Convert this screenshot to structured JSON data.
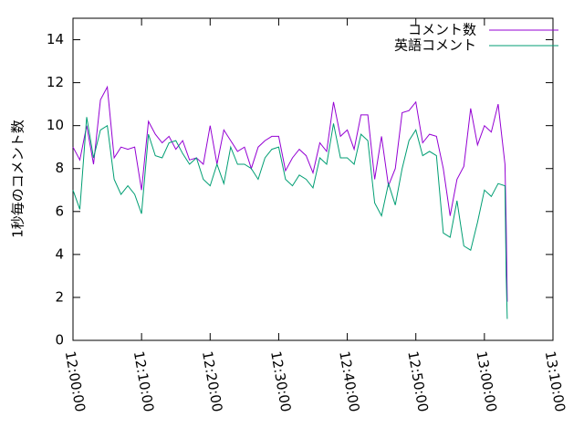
{
  "chart_data": {
    "type": "line",
    "y_label": "1秒毎のコメント数",
    "x": [
      "12:00:00",
      "12:01:00",
      "12:02:00",
      "12:03:00",
      "12:04:00",
      "12:05:00",
      "12:06:00",
      "12:07:00",
      "12:08:00",
      "12:09:00",
      "12:10:00",
      "12:11:00",
      "12:12:00",
      "12:13:00",
      "12:14:00",
      "12:15:00",
      "12:16:00",
      "12:17:00",
      "12:18:00",
      "12:19:00",
      "12:20:00",
      "12:21:00",
      "12:22:00",
      "12:23:00",
      "12:24:00",
      "12:25:00",
      "12:26:00",
      "12:27:00",
      "12:28:00",
      "12:29:00",
      "12:30:00",
      "12:31:00",
      "12:32:00",
      "12:33:00",
      "12:34:00",
      "12:35:00",
      "12:36:00",
      "12:37:00",
      "12:38:00",
      "12:39:00",
      "12:40:00",
      "12:41:00",
      "12:42:00",
      "12:43:00",
      "12:44:00",
      "12:45:00",
      "12:46:00",
      "12:47:00",
      "12:48:00",
      "12:49:00",
      "12:50:00",
      "12:51:00",
      "12:52:00",
      "12:53:00",
      "12:54:00",
      "12:55:00",
      "12:56:00",
      "12:57:00",
      "12:58:00",
      "12:59:00",
      "13:00:00",
      "13:01:00",
      "13:02:00",
      "13:03:00",
      "13:03:10",
      "13:03:20"
    ],
    "series": [
      {
        "name": "コメント数",
        "color": "#9400d3",
        "values": [
          9.0,
          8.4,
          10.0,
          8.2,
          11.2,
          11.8,
          8.5,
          9.0,
          8.9,
          9.0,
          7.0,
          10.2,
          9.6,
          9.2,
          9.5,
          8.9,
          9.3,
          8.4,
          8.5,
          8.2,
          10.0,
          8.2,
          9.8,
          9.3,
          8.8,
          9.0,
          8.0,
          9.0,
          9.3,
          9.5,
          9.5,
          7.9,
          8.5,
          8.9,
          8.6,
          7.8,
          9.2,
          8.8,
          11.1,
          9.5,
          9.8,
          8.9,
          10.5,
          10.5,
          7.5,
          9.5,
          7.2,
          8.0,
          10.6,
          10.7,
          11.1,
          9.2,
          9.6,
          9.5,
          8.0,
          5.8,
          7.5,
          8.1,
          10.8,
          9.1,
          10.0,
          9.7,
          11.0,
          8.2,
          5.5,
          1.8
        ]
      },
      {
        "name": "英語コメント",
        "color": "#009e73",
        "values": [
          7.0,
          6.1,
          10.4,
          8.5,
          9.8,
          10.0,
          7.5,
          6.8,
          7.2,
          6.8,
          5.9,
          9.6,
          8.6,
          8.5,
          9.2,
          9.3,
          8.7,
          8.2,
          8.5,
          7.5,
          7.2,
          8.2,
          7.3,
          9.0,
          8.2,
          8.2,
          8.0,
          7.5,
          8.5,
          8.9,
          9.0,
          7.5,
          7.2,
          7.7,
          7.5,
          7.1,
          8.5,
          8.2,
          10.1,
          8.5,
          8.5,
          8.2,
          9.6,
          9.3,
          6.4,
          5.8,
          7.3,
          6.3,
          8.0,
          9.3,
          9.8,
          8.6,
          8.8,
          8.6,
          5.0,
          4.8,
          6.5,
          4.4,
          4.2,
          5.5,
          7.0,
          6.7,
          7.3,
          7.2,
          3.0,
          1.0
        ]
      }
    ],
    "xlim": [
      "12:00:00",
      "13:10:00"
    ],
    "xticks": [
      "12:00:00",
      "12:10:00",
      "12:20:00",
      "12:30:00",
      "12:40:00",
      "12:50:00",
      "13:00:00",
      "13:10:00"
    ],
    "ylim": [
      0,
      15
    ],
    "yticks": [
      0,
      2,
      4,
      6,
      8,
      10,
      12,
      14
    ],
    "legend": "top-right"
  }
}
